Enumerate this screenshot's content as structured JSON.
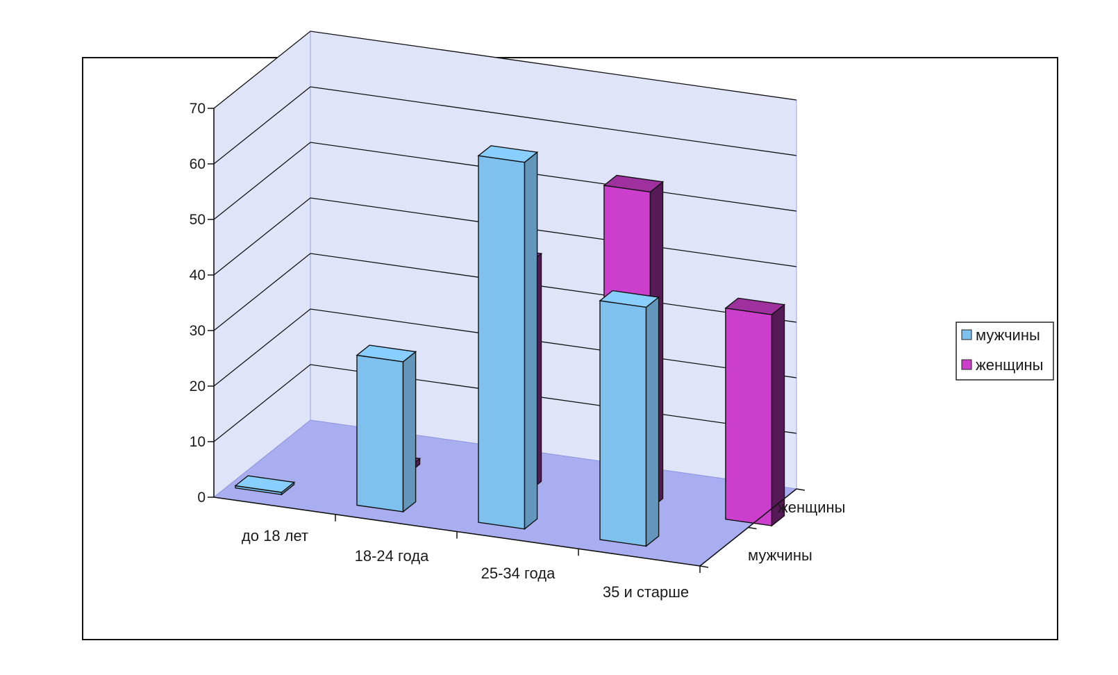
{
  "chart_data": {
    "type": "bar",
    "subtype": "3d-column",
    "categories": [
      "до 18 лет",
      "18-24 года",
      "25-34 года",
      "35 и старше"
    ],
    "series": [
      {
        "name": "мужчины",
        "values": [
          0,
          27,
          66,
          43
        ],
        "color": "#7ec0ee"
      },
      {
        "name": "женщины",
        "values": [
          1,
          41,
          57,
          38
        ],
        "color": "#cc3fcc"
      }
    ],
    "ylim": [
      0,
      70
    ],
    "yticks": [
      0,
      10,
      20,
      30,
      40,
      50,
      60,
      70
    ],
    "depth_labels": [
      "мужчины",
      "женщины"
    ],
    "legend": {
      "position": "right",
      "items": [
        "мужчины",
        "женщины"
      ]
    },
    "grid": true,
    "colors": {
      "walls": "#dfe4f8",
      "floor": "#a9aef0",
      "gridline": "#111111"
    }
  }
}
